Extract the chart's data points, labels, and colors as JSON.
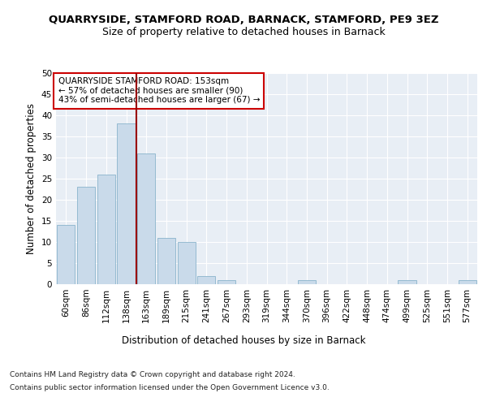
{
  "title": "QUARRYSIDE, STAMFORD ROAD, BARNACK, STAMFORD, PE9 3EZ",
  "subtitle": "Size of property relative to detached houses in Barnack",
  "xlabel": "Distribution of detached houses by size in Barnack",
  "ylabel": "Number of detached properties",
  "categories": [
    "60sqm",
    "86sqm",
    "112sqm",
    "138sqm",
    "163sqm",
    "189sqm",
    "215sqm",
    "241sqm",
    "267sqm",
    "293sqm",
    "319sqm",
    "344sqm",
    "370sqm",
    "396sqm",
    "422sqm",
    "448sqm",
    "474sqm",
    "499sqm",
    "525sqm",
    "551sqm",
    "577sqm"
  ],
  "values": [
    14,
    23,
    26,
    38,
    31,
    11,
    10,
    2,
    1,
    0,
    0,
    0,
    1,
    0,
    0,
    0,
    0,
    1,
    0,
    0,
    1
  ],
  "bar_color": "#c9daea",
  "bar_edge_color": "#8ab4cc",
  "vline_x_index": 4,
  "vline_color": "#990000",
  "ylim": [
    0,
    50
  ],
  "yticks": [
    0,
    5,
    10,
    15,
    20,
    25,
    30,
    35,
    40,
    45,
    50
  ],
  "annotation_line1": "QUARRYSIDE STAMFORD ROAD: 153sqm",
  "annotation_line2": "← 57% of detached houses are smaller (90)",
  "annotation_line3": "43% of semi-detached houses are larger (67) →",
  "annotation_box_color": "#ffffff",
  "annotation_box_edge_color": "#cc0000",
  "background_color": "#e8eef5",
  "grid_color": "#ffffff",
  "title_fontsize": 9.5,
  "subtitle_fontsize": 9,
  "axis_label_fontsize": 8.5,
  "tick_fontsize": 7.5,
  "footer_line1": "Contains HM Land Registry data © Crown copyright and database right 2024.",
  "footer_line2": "Contains public sector information licensed under the Open Government Licence v3.0."
}
